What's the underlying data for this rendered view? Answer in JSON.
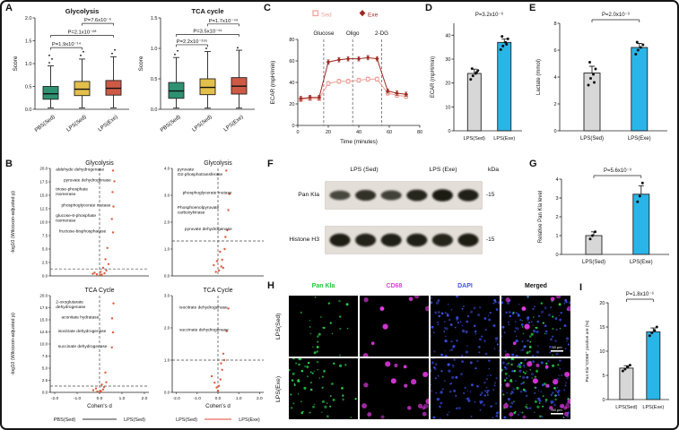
{
  "panel_letters": {
    "a": "A",
    "b": "B",
    "c": "C",
    "d": "D",
    "e": "E",
    "f": "F",
    "g": "G",
    "h": "H",
    "i": "I"
  },
  "colors": {
    "bar_fills": [
      "#d7d7d7",
      "#2ab5e8"
    ],
    "volcano_point": "#dc4a2e",
    "box_fills": [
      "#2e9272",
      "#e3c04b",
      "#cd5a45"
    ]
  },
  "chart_data": {
    "boxplots": [
      {
        "type": "box",
        "title": "Glycolysis",
        "ylabel": "Score",
        "ylim": [
          0,
          2
        ],
        "yticks": [
          0,
          0.5,
          1,
          1.5,
          2
        ],
        "categories": [
          "PBS(Sed)",
          "LPS(Sed)",
          "LPS(Exe)"
        ],
        "colors": [
          "#2e9272",
          "#e3c04b",
          "#cd5a45"
        ],
        "boxes": [
          {
            "lo": 0.03,
            "q1": 0.22,
            "med": 0.34,
            "q3": 0.5,
            "hi": 0.95,
            "outliers": [
              1.02,
              1.1,
              1.18
            ]
          },
          {
            "lo": 0.03,
            "q1": 0.3,
            "med": 0.44,
            "q3": 0.61,
            "hi": 1.1,
            "outliers": [
              1.18,
              1.26
            ]
          },
          {
            "lo": 0.03,
            "q1": 0.31,
            "med": 0.46,
            "q3": 0.63,
            "hi": 1.15,
            "outliers": [
              1.22,
              1.3
            ]
          }
        ],
        "comparisons": [
          {
            "pair": [
              0,
              1
            ],
            "y": 1.35,
            "label": "P=1.9x10⁻¹⁴"
          },
          {
            "pair": [
              0,
              2
            ],
            "y": 1.62,
            "label": "P=2.1x10⁻²⁸"
          },
          {
            "pair": [
              1,
              2
            ],
            "y": 1.88,
            "label": "P=7.6x10⁻⁶"
          }
        ]
      },
      {
        "type": "box",
        "title": "TCA cycle",
        "ylabel": "Score",
        "ylim": [
          0,
          1.5
        ],
        "yticks": [
          0,
          0.5,
          1,
          1.5
        ],
        "categories": [
          "PBS(Sed)",
          "LPS(Sed)",
          "LPS(Exe)"
        ],
        "colors": [
          "#2e9272",
          "#e3c04b",
          "#cd5a45"
        ],
        "boxes": [
          {
            "lo": 0.02,
            "q1": 0.18,
            "med": 0.3,
            "q3": 0.44,
            "hi": 0.85,
            "outliers": [
              0.9,
              0.96
            ]
          },
          {
            "lo": 0.02,
            "q1": 0.24,
            "med": 0.36,
            "q3": 0.5,
            "hi": 0.95,
            "outliers": [
              1.0
            ]
          },
          {
            "lo": 0.02,
            "q1": 0.25,
            "med": 0.38,
            "q3": 0.52,
            "hi": 0.97,
            "outliers": [
              1.01
            ]
          }
        ],
        "comparisons": [
          {
            "pair": [
              0,
              1
            ],
            "y": 1.06,
            "label": "P=2.2x10⁻²⁹⁵"
          },
          {
            "pair": [
              0,
              2
            ],
            "y": 1.23,
            "label": "P=3.5x10⁻¹⁹"
          },
          {
            "pair": [
              1,
              2
            ],
            "y": 1.4,
            "label": "P=1.7x10⁻⁴⁹"
          }
        ]
      }
    ],
    "volcano_panel": {
      "type": "scatter",
      "ylabel": "-log10 (Wilcoxon-adjusted p)",
      "xlabel": "Cohen's d",
      "xticks": [
        -2,
        -1,
        0,
        1,
        2
      ],
      "group_pairs": [
        {
          "left": "PBS(Sed)",
          "right": "LPS(Sed)",
          "line_color": "#333333"
        },
        {
          "left": "LPS(Sed)",
          "right": "LPS(Exe)",
          "line_color": "#e0492e"
        }
      ],
      "plots": [
        {
          "title": "Glycolysis",
          "row": 0,
          "col": 0,
          "ylim": [
            0,
            20
          ],
          "yticks": [
            0,
            2.5,
            5,
            7.5,
            10,
            12.5,
            15,
            17.5,
            20
          ],
          "xlim": [
            -2.2,
            2.2
          ],
          "hline": 1.3,
          "labels": [
            {
              "x": -1.95,
              "y": 19.6,
              "lines": [
                "aldehyde dehydrogenase"
              ]
            },
            {
              "x": -1.6,
              "y": 17.6,
              "lines": [
                "pyruvate dehydrogenase"
              ]
            },
            {
              "x": -1.95,
              "y": 15.9,
              "lines": [
                "triose-phosphate",
                "isomerase"
              ]
            },
            {
              "x": -1.7,
              "y": 12.9,
              "lines": [
                "phosphoglycerate mutase"
              ]
            },
            {
              "x": -1.95,
              "y": 11.0,
              "lines": [
                "glucose-6-phosphate",
                "isomerase"
              ]
            },
            {
              "x": -1.8,
              "y": 8.1,
              "lines": [
                "fructose-bisphosphatase"
              ]
            }
          ],
          "points": [
            [
              0.1,
              0.25
            ],
            [
              0.22,
              0.5
            ],
            [
              -0.12,
              0.3
            ],
            [
              0.3,
              1.0
            ],
            [
              0.16,
              1.5
            ],
            [
              0.4,
              2.2
            ],
            [
              0.05,
              0.75
            ],
            [
              0.26,
              3.1
            ],
            [
              0.6,
              8.1
            ],
            [
              0.55,
              10.6
            ],
            [
              0.62,
              12.9
            ],
            [
              0.58,
              15.6
            ],
            [
              0.66,
              17.6
            ],
            [
              0.6,
              19.6
            ],
            [
              -0.22,
              0.6
            ],
            [
              0.35,
              5.2
            ],
            [
              0.02,
              0.15
            ],
            [
              -0.3,
              0.4
            ]
          ]
        },
        {
          "title": "Glycolysis",
          "row": 0,
          "col": 1,
          "ylim": [
            0,
            4
          ],
          "yticks": [
            0,
            1,
            2,
            3,
            4
          ],
          "xlim": [
            -2.2,
            2.2
          ],
          "hline": 1.3,
          "labels": [
            {
              "x": -1.95,
              "y": 3.92,
              "lines": [
                "pyruvate",
                "O2-phosphotransferase"
              ]
            },
            {
              "x": -1.7,
              "y": 3.05,
              "lines": [
                "phosphoglycerate mutase"
              ]
            },
            {
              "x": -1.95,
              "y": 2.5,
              "lines": [
                "Phosphoenolpyruvate",
                "carboxykinase"
              ]
            },
            {
              "x": -1.6,
              "y": 1.7,
              "lines": [
                "pyruvate dehydrogenase"
              ]
            }
          ],
          "points": [
            [
              0.05,
              0.2
            ],
            [
              0.16,
              0.35
            ],
            [
              -0.1,
              0.15
            ],
            [
              0.2,
              0.6
            ],
            [
              0.32,
              1.0
            ],
            [
              0.36,
              1.45
            ],
            [
              -0.2,
              0.4
            ],
            [
              0.45,
              1.7
            ],
            [
              0.5,
              2.45
            ],
            [
              0.55,
              3.05
            ],
            [
              0.4,
              3.92
            ],
            [
              0.1,
              0.9
            ],
            [
              -0.05,
              0.55
            ],
            [
              0.25,
              0.3
            ]
          ]
        },
        {
          "title": "TCA Cycle",
          "row": 1,
          "col": 0,
          "ylim": [
            0,
            20
          ],
          "yticks": [
            0,
            2.5,
            5,
            7.5,
            10,
            12.5,
            15,
            17.5,
            20
          ],
          "xlim": [
            -2.2,
            2.2
          ],
          "hline": 1.3,
          "labels": [
            {
              "x": -1.95,
              "y": 18.4,
              "lines": [
                "2-oxoglutarate",
                "dehydrogenase"
              ]
            },
            {
              "x": -1.7,
              "y": 15.3,
              "lines": [
                "aconitate hydratase"
              ]
            },
            {
              "x": -1.85,
              "y": 12.4,
              "lines": [
                "isocitrate dehydrogenase"
              ]
            },
            {
              "x": -1.85,
              "y": 9.3,
              "lines": [
                "succinate dehydrogenase"
              ]
            }
          ],
          "points": [
            [
              0.06,
              0.3
            ],
            [
              0.16,
              0.6
            ],
            [
              -0.1,
              0.2
            ],
            [
              0.2,
              1.1
            ],
            [
              0.3,
              2.1
            ],
            [
              0.55,
              9.3
            ],
            [
              0.6,
              12.4
            ],
            [
              0.56,
              15.3
            ],
            [
              0.62,
              18.4
            ],
            [
              0.26,
              4.1
            ],
            [
              -0.16,
              0.8
            ],
            [
              0.1,
              1.6
            ],
            [
              0.02,
              0.1
            ],
            [
              -0.28,
              0.45
            ]
          ]
        },
        {
          "title": "TCA Cycle",
          "row": 1,
          "col": 1,
          "ylim": [
            0,
            3
          ],
          "yticks": [
            0,
            1,
            2,
            3
          ],
          "xlim": [
            -2.2,
            2.2
          ],
          "hline": 1.0,
          "labels": [
            {
              "x": -1.85,
              "y": 2.6,
              "lines": [
                "isocitrate dehydrogenase"
              ]
            },
            {
              "x": -1.85,
              "y": 1.9,
              "lines": [
                "succinate dehydrogenase"
              ]
            }
          ],
          "points": [
            [
              0.05,
              0.2
            ],
            [
              0.12,
              0.4
            ],
            [
              -0.06,
              0.15
            ],
            [
              0.2,
              0.7
            ],
            [
              0.3,
              1.0
            ],
            [
              0.42,
              1.9
            ],
            [
              0.5,
              2.6
            ],
            [
              -0.16,
              0.3
            ],
            [
              0.15,
              0.9
            ],
            [
              0.26,
              1.2
            ],
            [
              0.0,
              0.05
            ],
            [
              -0.3,
              0.5
            ]
          ]
        }
      ]
    },
    "ecar_timecourse": {
      "type": "line",
      "ylabel": "ECAR (mpH/min)",
      "xlabel": "Time (minutes)",
      "ylim": [
        0,
        80
      ],
      "yticks": [
        0,
        20,
        40,
        60,
        80
      ],
      "xlim": [
        0,
        80
      ],
      "xticks": [
        0,
        20,
        40,
        60,
        80
      ],
      "injections": [
        {
          "label": "Glucose",
          "x": 17
        },
        {
          "label": "Oligo",
          "x": 36
        },
        {
          "label": "2-DG",
          "x": 55
        }
      ],
      "x": [
        2,
        8,
        14,
        20,
        27,
        33,
        40,
        46,
        52,
        59,
        65,
        71
      ],
      "series": [
        {
          "name": "Sed",
          "color": "#ef9f98",
          "marker": "square",
          "err": 2,
          "values": [
            24,
            25,
            25,
            39,
            41,
            41,
            42,
            43,
            43,
            30,
            28,
            27
          ]
        },
        {
          "name": "Exe",
          "color": "#9c2a22",
          "marker": "diamond",
          "err": 2,
          "values": [
            25,
            26,
            26,
            59,
            61,
            62,
            62,
            63,
            62,
            32,
            30,
            29
          ]
        }
      ]
    },
    "bars": [
      {
        "panel": "D",
        "type": "bar",
        "ylabel": "ECAR (mpH/min)",
        "ylim": [
          0,
          45
        ],
        "yticks": [
          0,
          10,
          20,
          30,
          40
        ],
        "categories": [
          "LPS(Sed)",
          "LPS(Exe)"
        ],
        "values": [
          24,
          37
        ],
        "errors": [
          1.8,
          1.4
        ],
        "dots": [
          [
            21.5,
            23,
            24,
            25.2,
            26,
            24.4
          ],
          [
            34,
            35.5,
            37,
            38.5,
            39.5,
            36.2
          ]
        ],
        "pvalue": "P=3.2x10⁻⁶",
        "bracket": false
      },
      {
        "panel": "E",
        "type": "bar",
        "ylabel": "Lactate (mmol)",
        "ylim": [
          0,
          8
        ],
        "yticks": [
          0,
          2,
          4,
          6,
          8
        ],
        "categories": [
          "LPS(Sed)",
          "LPS(Exe)"
        ],
        "values": [
          4.3,
          6.2
        ],
        "errors": [
          0.5,
          0.3
        ],
        "dots": [
          [
            3.4,
            3.9,
            4.2,
            4.6,
            5.1,
            3.6
          ],
          [
            5.7,
            6.0,
            6.2,
            6.4,
            6.6
          ]
        ],
        "pvalue": "P=2.0x10⁻³",
        "bracket": true
      },
      {
        "panel": "G",
        "type": "bar",
        "ylabel": "Relative Pan Kla level",
        "ylim": [
          0,
          4
        ],
        "yticks": [
          0,
          1,
          2,
          3,
          4
        ],
        "categories": [
          "LPS(Sed)",
          "LPS(Exe)"
        ],
        "values": [
          1.0,
          3.2
        ],
        "errors": [
          0.2,
          0.45
        ],
        "dots": [
          [
            0.82,
            1.0,
            1.2
          ],
          [
            2.8,
            3.1,
            3.8
          ]
        ],
        "pvalue": "P=5.6x10⁻³",
        "bracket": true
      },
      {
        "panel": "I",
        "type": "bar",
        "ylabel": "Pan Kla⁺CD68⁺ positive are (%)",
        "ylim": [
          0,
          20
        ],
        "yticks": [
          0,
          5,
          10,
          15,
          20
        ],
        "categories": [
          "LPS(Sed)",
          "LPS(Exe)"
        ],
        "values": [
          6.5,
          14
        ],
        "errors": [
          0.5,
          0.8
        ],
        "dots": [
          [
            5.9,
            6.3,
            6.7,
            7.1
          ],
          [
            13.2,
            13.8,
            14.3,
            15.0
          ]
        ],
        "pvalue": "P=1.8x10⁻⁶",
        "bracket": true
      }
    ]
  },
  "western_blot": {
    "group_labels": [
      "LPS (Sed)",
      "LPS (Exe)"
    ],
    "kda": "kDa",
    "rows": [
      {
        "label": "Pan Kla",
        "marker": "-15",
        "bands": [
          0.55,
          0.75,
          0.6,
          0.85,
          0.95,
          0.9
        ]
      },
      {
        "label": "Histone H3",
        "marker": "-15",
        "bands": [
          0.92,
          0.88,
          0.9,
          0.9,
          0.86,
          0.93
        ]
      }
    ]
  },
  "immunofluorescence": {
    "columns": [
      {
        "label": "Pan Kla",
        "color": "#21c93e"
      },
      {
        "label": "CD68",
        "color": "#e63de6"
      },
      {
        "label": "DAPI",
        "color": "#4053ee"
      },
      {
        "label": "Merged",
        "color": "#111111"
      }
    ],
    "rows": [
      {
        "label": "LPS(Sed)",
        "pankla_count": 24,
        "cd68_count": 8,
        "dapi_count": 85
      },
      {
        "label": "LPS(Exe)",
        "pankla_count": 58,
        "cd68_count": 17,
        "dapi_count": 85
      }
    ],
    "channel_colors": {
      "pankla": "#2fe052",
      "cd68": "#ef3cef",
      "dapi": "#3b4fe8"
    },
    "scale_bar_label": "50 μm"
  }
}
